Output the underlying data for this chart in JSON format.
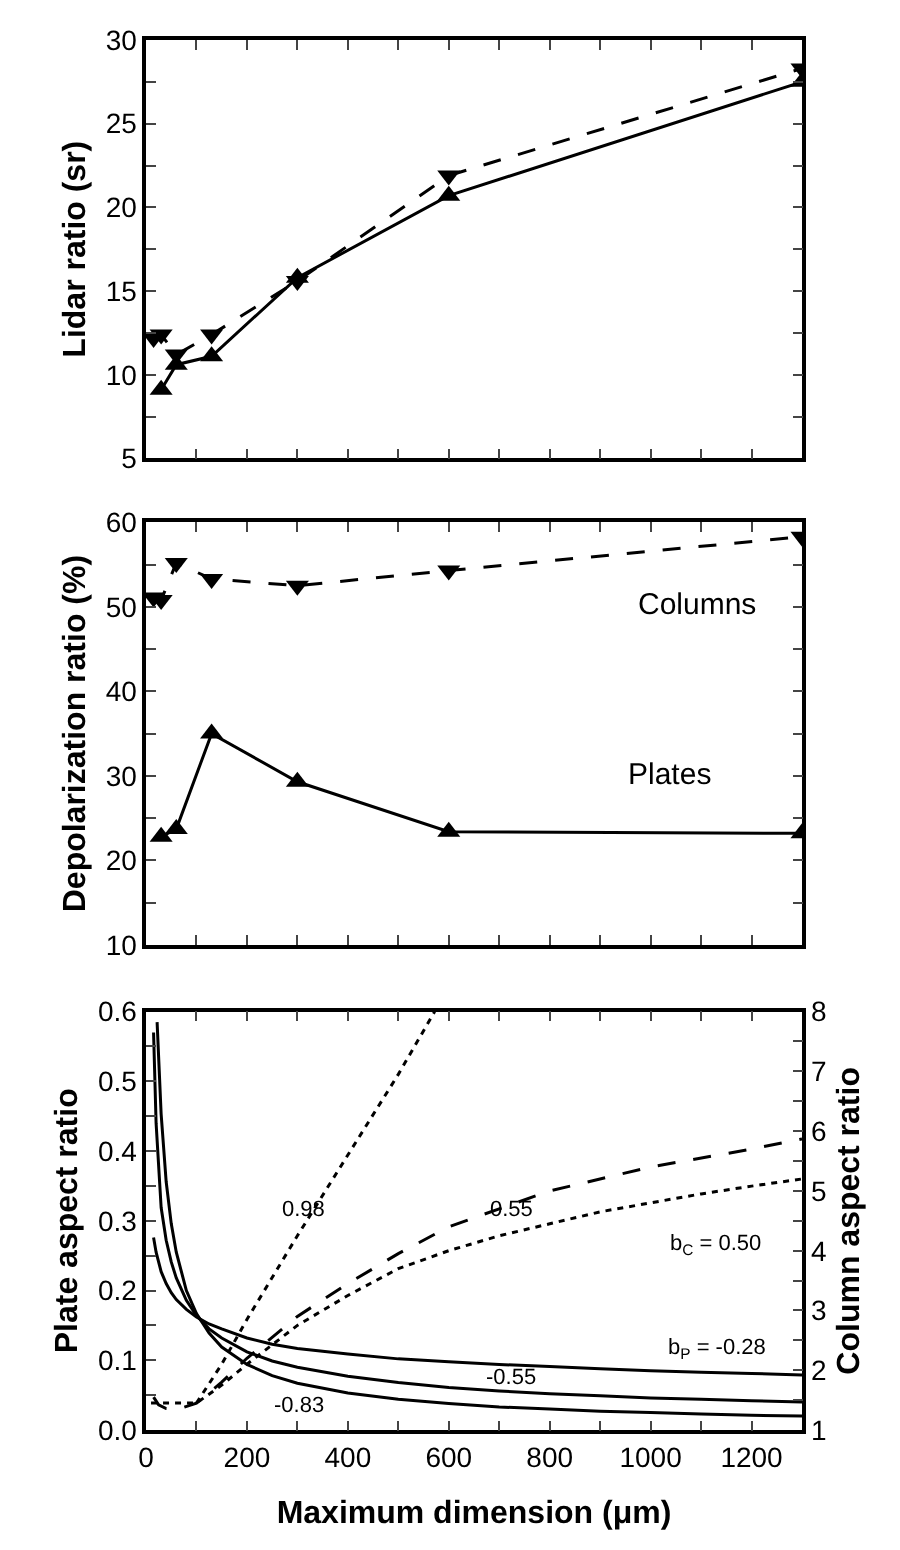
{
  "chart_data": [
    {
      "type": "line",
      "ylabel": "Lidar ratio (sr)",
      "xlim": [
        0,
        1300
      ],
      "ylim": [
        5,
        30
      ],
      "tick_labels": "y",
      "xticks": [
        0,
        {
          "value": 100,
          "label": null
        },
        200,
        {
          "value": 300,
          "label": null
        },
        400,
        {
          "value": 500,
          "label": null
        },
        600,
        {
          "value": 700,
          "label": null
        },
        800,
        {
          "value": 900,
          "label": null
        },
        1000,
        {
          "value": 1100,
          "label": null
        },
        1200
      ],
      "yticks": [
        5,
        {
          "value": 7.5,
          "label": null
        },
        10,
        {
          "value": 12.5,
          "label": null
        },
        15,
        {
          "value": 17.5,
          "label": null
        },
        20,
        {
          "value": 22.5,
          "label": null
        },
        25,
        {
          "value": 27.5,
          "label": null
        },
        30
      ],
      "series": [
        {
          "color": "#000000",
          "marker": "triangle-down",
          "line_style": "dashed",
          "x": [
            15,
            30,
            60,
            130,
            300,
            600,
            1300
          ],
          "values": [
            12.2,
            12.4,
            11.2,
            12.4,
            15.6,
            21.9,
            28.3
          ]
        },
        {
          "color": "#000000",
          "marker": "triangle",
          "line_style": "solid",
          "x": [
            30,
            60,
            130,
            300,
            600,
            1300
          ],
          "values": [
            9.1,
            10.6,
            11.1,
            15.8,
            20.7,
            27.5
          ]
        }
      ]
    },
    {
      "type": "line",
      "ylabel": "Depolarization ratio (%)",
      "xlim": [
        0,
        1300
      ],
      "ylim": [
        10,
        60
      ],
      "tick_labels": "y",
      "xticks": [
        0,
        {
          "value": 100,
          "label": null
        },
        200,
        {
          "value": 300,
          "label": null
        },
        400,
        {
          "value": 500,
          "label": null
        },
        600,
        {
          "value": 700,
          "label": null
        },
        800,
        {
          "value": 900,
          "label": null
        },
        1000,
        {
          "value": 1100,
          "label": null
        },
        1200
      ],
      "yticks": [
        10,
        {
          "value": 15,
          "label": null
        },
        20,
        {
          "value": 25,
          "label": null
        },
        30,
        {
          "value": 35,
          "label": null
        },
        40,
        {
          "value": 45,
          "label": null
        },
        50,
        {
          "value": 55,
          "label": null
        },
        60
      ],
      "annotations": [
        "Columns",
        "Plates"
      ],
      "series": [
        {
          "color": "#000000",
          "marker": "triangle-down",
          "line_style": "dashed",
          "x": [
            15,
            30,
            60,
            130,
            300,
            600,
            1300
          ],
          "values": [
            51.1,
            50.8,
            55.2,
            53.3,
            52.5,
            54.3,
            58.3
          ]
        },
        {
          "color": "#000000",
          "marker": "triangle",
          "line_style": "solid",
          "x": [
            30,
            60,
            130,
            300,
            600,
            1300
          ],
          "values": [
            22.8,
            23.7,
            35.0,
            29.3,
            23.4,
            23.2
          ]
        }
      ]
    },
    {
      "type": "line",
      "xlabel": "Maximum dimension (μm)",
      "ylabel": "Plate aspect ratio",
      "y2label": "Column aspect ratio",
      "xlim": [
        0,
        1300
      ],
      "ylim": [
        0,
        0.6
      ],
      "y2lim": [
        1,
        8
      ],
      "marker": "none",
      "xticks": [
        0,
        {
          "value": 100,
          "label": null
        },
        200,
        {
          "value": 300,
          "label": null
        },
        400,
        {
          "value": 500,
          "label": null
        },
        600,
        {
          "value": 700,
          "label": null
        },
        800,
        {
          "value": 900,
          "label": null
        },
        1000,
        {
          "value": 1100,
          "label": null
        },
        1200
      ],
      "yticks": [
        {
          "value": 0,
          "label": "0.0"
        },
        {
          "value": 0.05,
          "label": null
        },
        0.1,
        {
          "value": 0.15,
          "label": null
        },
        0.2,
        {
          "value": 0.25,
          "label": null
        },
        0.3,
        {
          "value": 0.35,
          "label": null
        },
        0.4,
        {
          "value": 0.45,
          "label": null
        },
        0.5,
        {
          "value": 0.55,
          "label": null
        },
        0.6
      ],
      "y2ticks": [
        1,
        {
          "value": 1.5,
          "label": null
        },
        2,
        {
          "value": 2.5,
          "label": null
        },
        3,
        {
          "value": 3.5,
          "label": null
        },
        4,
        {
          "value": 4.5,
          "label": null
        },
        5,
        {
          "value": 5.5,
          "label": null
        },
        6,
        {
          "value": 6.5,
          "label": null
        },
        7,
        {
          "value": 7.5,
          "label": null
        },
        8
      ],
      "annotations": [
        "0.98",
        "0.55",
        "b$_{C}$ = 0.50",
        "b$_{P}$ = -0.28",
        "-0.55",
        "-0.83"
      ],
      "series": [
        {
          "color": "#000000",
          "line_style": "solid",
          "x": [
            15,
            20,
            30,
            40,
            50,
            60,
            80,
            100,
            125,
            150,
            200,
            250,
            300,
            400,
            500,
            600,
            700,
            800,
            900,
            1000,
            1100,
            1200,
            1300
          ],
          "values": [
            0.276,
            0.255,
            0.227,
            0.21,
            0.197,
            0.187,
            0.173,
            0.162,
            0.152,
            0.145,
            0.132,
            0.123,
            0.117,
            0.109,
            0.102,
            0.098,
            0.094,
            0.091,
            0.088,
            0.085,
            0.083,
            0.081,
            0.079
          ]
        },
        {
          "color": "#000000",
          "line_style": "solid",
          "x": [
            15,
            20,
            30,
            40,
            50,
            60,
            80,
            100,
            125,
            150,
            200,
            250,
            300,
            400,
            500,
            600,
            700,
            800,
            900,
            1000,
            1100,
            1200,
            1300
          ],
          "values": [
            0.57,
            0.44,
            0.319,
            0.272,
            0.241,
            0.218,
            0.186,
            0.164,
            0.145,
            0.132,
            0.112,
            0.099,
            0.09,
            0.077,
            0.068,
            0.061,
            0.056,
            0.052,
            0.049,
            0.046,
            0.044,
            0.042,
            0.04
          ]
        },
        {
          "color": "#000000",
          "line_style": "solid",
          "x": [
            22,
            30,
            40,
            50,
            60,
            80,
            100,
            125,
            150,
            200,
            250,
            300,
            400,
            500,
            600,
            700,
            800,
            900,
            1000,
            1100,
            1200,
            1300
          ],
          "values": [
            0.585,
            0.453,
            0.356,
            0.296,
            0.255,
            0.2,
            0.167,
            0.139,
            0.119,
            0.094,
            0.078,
            0.067,
            0.053,
            0.044,
            0.038,
            0.033,
            0.03,
            0.027,
            0.025,
            0.023,
            0.021,
            0.02
          ]
        },
        {
          "color": "#000000",
          "line_style": "dotted",
          "axis": "y2",
          "x": [
            100,
            150,
            200,
            300,
            400,
            500,
            572
          ],
          "values": [
            1.45,
            2.1,
            2.85,
            4.25,
            5.6,
            6.95,
            8.0
          ]
        },
        {
          "color": "#000000",
          "line_style": "dashed",
          "axis": "y2",
          "x": [
            15,
            25,
            40,
            55,
            75,
            100,
            150,
            200,
            300,
            400,
            500,
            600,
            700,
            800,
            1000,
            1200,
            1300
          ],
          "values": [
            1.55,
            1.42,
            1.36,
            1.35,
            1.38,
            1.45,
            1.8,
            2.2,
            2.9,
            3.45,
            3.95,
            4.4,
            4.7,
            5.0,
            5.4,
            5.7,
            5.87
          ]
        },
        {
          "color": "#000000",
          "line_style": "dotted",
          "axis": "y2",
          "x": [
            10,
            50,
            100,
            150,
            200,
            300,
            400,
            500,
            600,
            700,
            800,
            900,
            1000,
            1100,
            1200,
            1300
          ],
          "values": [
            1.45,
            1.45,
            1.45,
            1.75,
            2.1,
            2.75,
            3.25,
            3.7,
            4.0,
            4.25,
            4.45,
            4.65,
            4.8,
            4.95,
            5.08,
            5.2
          ]
        }
      ]
    }
  ]
}
